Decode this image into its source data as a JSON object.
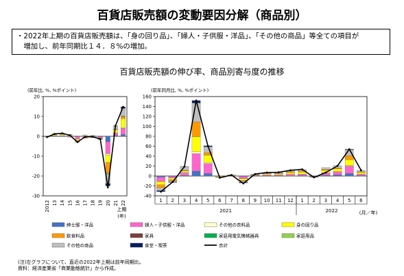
{
  "title": "百貨店販売額の変動要因分解（商品別）",
  "summary_lines": [
    "・2022年上期の百貨店販売額は、「身の回り品」、「婦人・子供服・洋品」、「その他の商品」等全ての項目が",
    "　増加し、前年同期比１４．８%の増加。"
  ],
  "chart_title": "百貨店販売額の伸び率、商品別寄与度の推移",
  "colors": {
    "紳士服・洋品": "#4472c4",
    "婦人・子供服・洋品": "#ff66cc",
    "その他の衣料品": "#ffffcc",
    "身の回り品": "#ffff00",
    "飲食料品": "#ff9900",
    "家具": "#7b3f3f",
    "家庭用電気機械器具": "#00b050",
    "家庭用品": "#92d050",
    "その他の商品": "#bfbfbf",
    "食堂・喫茶": "#002060",
    "合計": "#000000"
  },
  "legend": [
    "紳士服・洋品",
    "婦人・子供服・洋品",
    "その他の衣料品",
    "身の回り品",
    "飲食料品",
    "家具",
    "家庭用電気機械器具",
    "家庭用品",
    "その他の商品",
    "食堂・喫茶",
    "合計"
  ],
  "notes": [
    "(注)左グラフについて、直近の2022年上期は前年同期比。",
    "資料：経済産業省「商業動態統計」から作成。"
  ],
  "chart_data": [
    {
      "type": "bar",
      "stacked": true,
      "unit_label": "(前年比, %, %ポイント)",
      "ylim": [
        -30,
        20
      ],
      "yticks": [
        -30,
        -20,
        -10,
        0,
        10,
        20
      ],
      "categories": [
        "2012",
        "13",
        "14",
        "15",
        "16",
        "17",
        "18",
        "19",
        "20",
        "21",
        "22"
      ],
      "x_end_label": "上期",
      "x_unit": "(年)",
      "series": [
        {
          "name": "紳士服・洋品",
          "values": [
            0,
            0.1,
            0.1,
            0,
            -0.2,
            -0.1,
            0,
            -0.2,
            -2.8,
            0.4,
            0.9
          ]
        },
        {
          "name": "婦人・子供服・洋品",
          "values": [
            -0.3,
            0.2,
            0.2,
            -0.4,
            -1.2,
            -0.6,
            -0.4,
            -0.6,
            -6,
            1.2,
            3.2
          ]
        },
        {
          "name": "その他の衣料品",
          "values": [
            0,
            0,
            0,
            0,
            -0.1,
            0,
            0,
            0,
            -0.6,
            0.1,
            0.3
          ]
        },
        {
          "name": "身の回り品",
          "values": [
            0,
            0.4,
            0.5,
            0.2,
            -0.7,
            0.3,
            0.2,
            -0.2,
            -3.8,
            1.6,
            4.5
          ]
        },
        {
          "name": "飲食料品",
          "values": [
            -0.1,
            0.1,
            0,
            0.4,
            -0.3,
            -0.3,
            -0.3,
            -0.4,
            -5.3,
            0.2,
            1
          ]
        },
        {
          "name": "家具",
          "values": [
            0,
            0,
            0,
            0,
            0,
            0,
            0,
            0,
            -0.2,
            0,
            0.1
          ]
        },
        {
          "name": "家庭用電気機械器具",
          "values": [
            0,
            0,
            0,
            0,
            0,
            0,
            0,
            0,
            0,
            0,
            0
          ]
        },
        {
          "name": "家庭用品",
          "values": [
            0,
            0,
            0,
            0,
            -0.1,
            0,
            0,
            0,
            -0.6,
            0.1,
            0.2
          ]
        },
        {
          "name": "その他の商品",
          "values": [
            0,
            0.5,
            0.8,
            0.4,
            -0.5,
            0.4,
            0.3,
            -0.2,
            -4.5,
            1.6,
            3.8
          ]
        },
        {
          "name": "食堂・喫茶",
          "values": [
            0,
            0,
            0,
            0,
            0,
            0,
            0,
            0,
            -1.2,
            0.1,
            0.8
          ]
        }
      ],
      "total": {
        "name": "合計",
        "values": [
          -0.4,
          1.2,
          1.5,
          0.5,
          -2.9,
          -0.3,
          -0.2,
          -1.4,
          -25.7,
          5.3,
          14.8
        ]
      }
    },
    {
      "type": "bar",
      "stacked": true,
      "unit_label": "(前年同月比, %, %ポイント)",
      "ylim": [
        -40,
        160
      ],
      "yticks": [
        -40,
        -20,
        0,
        20,
        40,
        60,
        80,
        100,
        120,
        140,
        160
      ],
      "categories": [
        "1",
        "2",
        "3",
        "4",
        "5",
        "6",
        "7",
        "8",
        "9",
        "10",
        "11",
        "12",
        "1",
        "2",
        "3",
        "4",
        "5",
        "6"
      ],
      "year_labels": [
        {
          "label": "2021",
          "span": [
            0,
            11
          ]
        },
        {
          "label": "2022",
          "span": [
            12,
            17
          ]
        }
      ],
      "x_unit": "(月／年)",
      "series": [
        {
          "name": "紳士服・洋品",
          "values": [
            -2.5,
            -1.2,
            1.2,
            10,
            5,
            0,
            0,
            -1,
            0.5,
            0.5,
            0.5,
            0.5,
            1,
            -0.2,
            1.5,
            2.5,
            5,
            1
          ]
        },
        {
          "name": "婦人・子供服・洋品",
          "values": [
            -8,
            -3,
            5,
            35,
            20,
            -0.5,
            0.5,
            -4,
            1,
            2,
            2,
            3,
            3,
            -1,
            5,
            6,
            15,
            3
          ]
        },
        {
          "name": "その他の衣料品",
          "values": [
            -1,
            0,
            1,
            4,
            2,
            0,
            0,
            -0.5,
            0,
            0,
            0,
            0,
            0,
            0,
            0,
            0.5,
            1,
            0
          ]
        },
        {
          "name": "身の回り品",
          "values": [
            -6,
            -3,
            3,
            30,
            15,
            -1,
            1,
            -3,
            1,
            2,
            2,
            3,
            4,
            -0.5,
            5,
            5,
            12,
            3
          ]
        },
        {
          "name": "飲食料品",
          "values": [
            -6,
            -3,
            1.5,
            30,
            5,
            -1,
            0,
            -1.5,
            0.5,
            0.5,
            1,
            2,
            2,
            -0.5,
            2,
            2,
            8,
            1.5
          ]
        },
        {
          "name": "家具",
          "values": [
            0,
            0,
            0,
            0,
            0,
            0,
            0,
            0,
            0,
            0,
            0,
            0,
            0,
            0,
            0,
            0,
            0,
            0
          ]
        },
        {
          "name": "家庭用電気機械器具",
          "values": [
            0,
            0,
            0,
            0,
            0,
            0,
            0,
            0,
            0,
            0,
            0,
            0,
            0,
            0,
            0,
            0,
            0,
            0
          ]
        },
        {
          "name": "家庭用品",
          "values": [
            0,
            0,
            0,
            0,
            0,
            0,
            0,
            0,
            0,
            0,
            0,
            0,
            0,
            0,
            0,
            0,
            0,
            0
          ]
        },
        {
          "name": "その他の商品",
          "values": [
            -6,
            -2,
            7,
            38,
            12,
            -0.5,
            1,
            -3,
            1,
            2,
            2,
            3,
            3,
            -0.5,
            3.5,
            5,
            12,
            3
          ]
        },
        {
          "name": "食堂・喫茶",
          "values": [
            -2,
            -0.8,
            0.5,
            5,
            2,
            0,
            0,
            -1,
            0,
            0,
            0,
            0,
            0,
            0,
            0,
            0,
            1,
            0
          ]
        }
      ],
      "total": {
        "name": "合計",
        "values": [
          -31.5,
          -12,
          19,
          152,
          60,
          -3.5,
          2,
          -15,
          4,
          7,
          7.5,
          11.5,
          13.5,
          -2.7,
          7,
          20.5,
          54,
          11.5
        ]
      }
    }
  ]
}
